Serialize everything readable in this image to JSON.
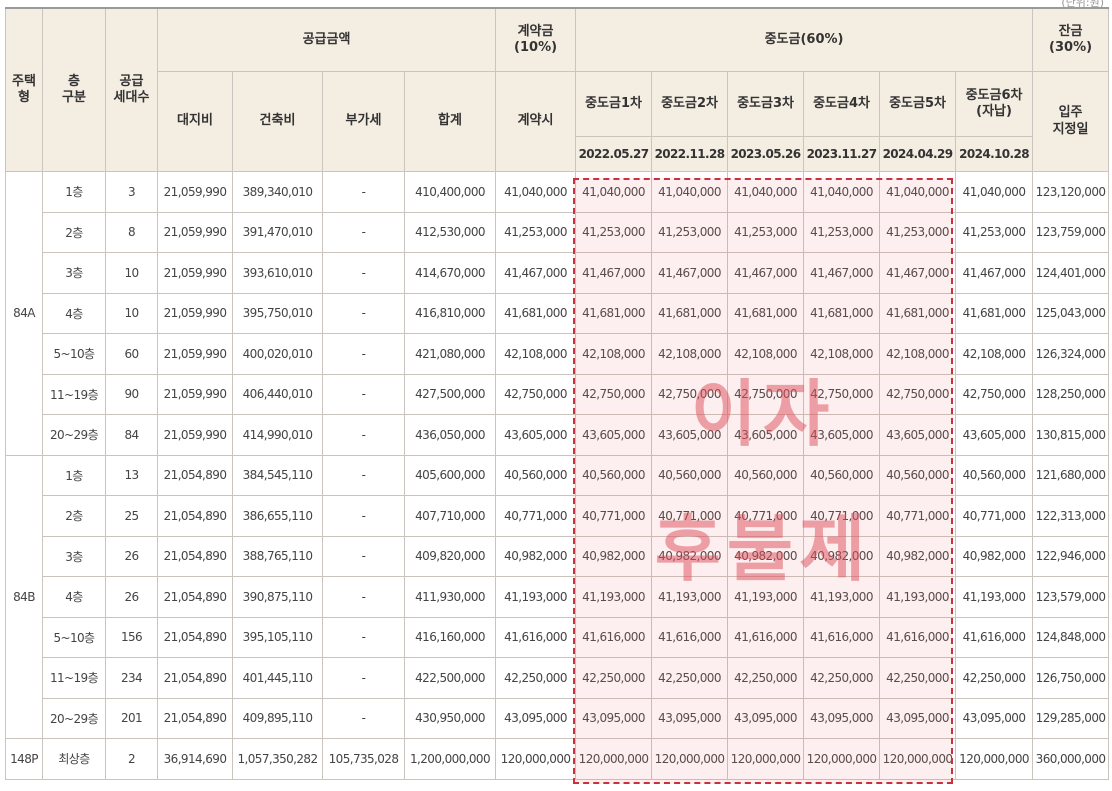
{
  "unit_note": "(단위:원)",
  "header": {
    "housing_type": "주택\n형",
    "floor": "층\n구분",
    "units": "공급\n세대수",
    "supply_price": "공급금액",
    "land": "대지비",
    "building": "건축비",
    "vat": "부가세",
    "total": "합계",
    "contract": "계약금\n(10%)",
    "contract_when": "계약시",
    "interim": "중도금(60%)",
    "interim_cols": [
      "중도금1차",
      "중도금2차",
      "중도금3차",
      "중도금4차",
      "중도금5차",
      "중도금6차\n(자납)"
    ],
    "interim_dates": [
      "2022.05.27",
      "2022.11.28",
      "2023.05.26",
      "2023.11.27",
      "2024.04.29",
      "2024.10.28"
    ],
    "balance": "잔금\n(30%)",
    "balance_when": "입주\n지정일"
  },
  "groups": [
    {
      "type": "84A",
      "rows": [
        {
          "floor": "1층",
          "units": "3",
          "land": "21,059,990",
          "building": "389,340,010",
          "vat": "-",
          "total": "410,400,000",
          "contract": "41,040,000",
          "interim": [
            "41,040,000",
            "41,040,000",
            "41,040,000",
            "41,040,000",
            "41,040,000",
            "41,040,000"
          ],
          "balance": "123,120,000"
        },
        {
          "floor": "2층",
          "units": "8",
          "land": "21,059,990",
          "building": "391,470,010",
          "vat": "-",
          "total": "412,530,000",
          "contract": "41,253,000",
          "interim": [
            "41,253,000",
            "41,253,000",
            "41,253,000",
            "41,253,000",
            "41,253,000",
            "41,253,000"
          ],
          "balance": "123,759,000"
        },
        {
          "floor": "3층",
          "units": "10",
          "land": "21,059,990",
          "building": "393,610,010",
          "vat": "-",
          "total": "414,670,000",
          "contract": "41,467,000",
          "interim": [
            "41,467,000",
            "41,467,000",
            "41,467,000",
            "41,467,000",
            "41,467,000",
            "41,467,000"
          ],
          "balance": "124,401,000"
        },
        {
          "floor": "4층",
          "units": "10",
          "land": "21,059,990",
          "building": "395,750,010",
          "vat": "-",
          "total": "416,810,000",
          "contract": "41,681,000",
          "interim": [
            "41,681,000",
            "41,681,000",
            "41,681,000",
            "41,681,000",
            "41,681,000",
            "41,681,000"
          ],
          "balance": "125,043,000"
        },
        {
          "floor": "5~10층",
          "units": "60",
          "land": "21,059,990",
          "building": "400,020,010",
          "vat": "-",
          "total": "421,080,000",
          "contract": "42,108,000",
          "interim": [
            "42,108,000",
            "42,108,000",
            "42,108,000",
            "42,108,000",
            "42,108,000",
            "42,108,000"
          ],
          "balance": "126,324,000"
        },
        {
          "floor": "11~19층",
          "units": "90",
          "land": "21,059,990",
          "building": "406,440,010",
          "vat": "-",
          "total": "427,500,000",
          "contract": "42,750,000",
          "interim": [
            "42,750,000",
            "42,750,000",
            "42,750,000",
            "42,750,000",
            "42,750,000",
            "42,750,000"
          ],
          "balance": "128,250,000"
        },
        {
          "floor": "20~29층",
          "units": "84",
          "land": "21,059,990",
          "building": "414,990,010",
          "vat": "-",
          "total": "436,050,000",
          "contract": "43,605,000",
          "interim": [
            "43,605,000",
            "43,605,000",
            "43,605,000",
            "43,605,000",
            "43,605,000",
            "43,605,000"
          ],
          "balance": "130,815,000"
        }
      ]
    },
    {
      "type": "84B",
      "rows": [
        {
          "floor": "1층",
          "units": "13",
          "land": "21,054,890",
          "building": "384,545,110",
          "vat": "-",
          "total": "405,600,000",
          "contract": "40,560,000",
          "interim": [
            "40,560,000",
            "40,560,000",
            "40,560,000",
            "40,560,000",
            "40,560,000",
            "40,560,000"
          ],
          "balance": "121,680,000"
        },
        {
          "floor": "2층",
          "units": "25",
          "land": "21,054,890",
          "building": "386,655,110",
          "vat": "-",
          "total": "407,710,000",
          "contract": "40,771,000",
          "interim": [
            "40,771,000",
            "40,771,000",
            "40,771,000",
            "40,771,000",
            "40,771,000",
            "40,771,000"
          ],
          "balance": "122,313,000"
        },
        {
          "floor": "3층",
          "units": "26",
          "land": "21,054,890",
          "building": "388,765,110",
          "vat": "-",
          "total": "409,820,000",
          "contract": "40,982,000",
          "interim": [
            "40,982,000",
            "40,982,000",
            "40,982,000",
            "40,982,000",
            "40,982,000",
            "40,982,000"
          ],
          "balance": "122,946,000"
        },
        {
          "floor": "4층",
          "units": "26",
          "land": "21,054,890",
          "building": "390,875,110",
          "vat": "-",
          "total": "411,930,000",
          "contract": "41,193,000",
          "interim": [
            "41,193,000",
            "41,193,000",
            "41,193,000",
            "41,193,000",
            "41,193,000",
            "41,193,000"
          ],
          "balance": "123,579,000"
        },
        {
          "floor": "5~10층",
          "units": "156",
          "land": "21,054,890",
          "building": "395,105,110",
          "vat": "-",
          "total": "416,160,000",
          "contract": "41,616,000",
          "interim": [
            "41,616,000",
            "41,616,000",
            "41,616,000",
            "41,616,000",
            "41,616,000",
            "41,616,000"
          ],
          "balance": "124,848,000"
        },
        {
          "floor": "11~19층",
          "units": "234",
          "land": "21,054,890",
          "building": "401,445,110",
          "vat": "-",
          "total": "422,500,000",
          "contract": "42,250,000",
          "interim": [
            "42,250,000",
            "42,250,000",
            "42,250,000",
            "42,250,000",
            "42,250,000",
            "42,250,000"
          ],
          "balance": "126,750,000"
        },
        {
          "floor": "20~29층",
          "units": "201",
          "land": "21,054,890",
          "building": "409,895,110",
          "vat": "-",
          "total": "430,950,000",
          "contract": "43,095,000",
          "interim": [
            "43,095,000",
            "43,095,000",
            "43,095,000",
            "43,095,000",
            "43,095,000",
            "43,095,000"
          ],
          "balance": "129,285,000"
        }
      ]
    },
    {
      "type": "148P",
      "rows": [
        {
          "floor": "최상층",
          "units": "2",
          "land": "36,914,690",
          "building": "1,057,350,282",
          "vat": "105,735,028",
          "total": "1,200,000,000",
          "contract": "120,000,000",
          "interim": [
            "120,000,000",
            "120,000,000",
            "120,000,000",
            "120,000,000",
            "120,000,000",
            "120,000,000"
          ],
          "balance": "360,000,000"
        }
      ]
    }
  ],
  "overlay": {
    "line1": "이자",
    "line2": "후불제",
    "highlight_color": "#c8323c"
  }
}
